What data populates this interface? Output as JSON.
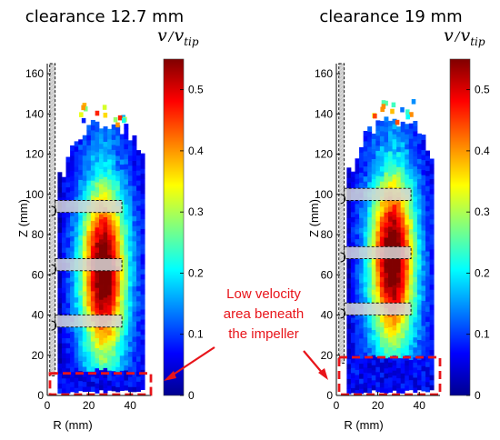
{
  "chart_data": [
    {
      "type": "heatmap",
      "title": "clearance 12.7 mm",
      "xlabel": "R (mm)",
      "ylabel": "Z (mm)",
      "xlim": [
        0,
        50
      ],
      "ylim": [
        0,
        165
      ],
      "xticks": [
        "0",
        "20",
        "40"
      ],
      "yticks": [
        "0",
        "20",
        "40",
        "60",
        "80",
        "100",
        "120",
        "140",
        "160"
      ],
      "clearance_mm": 12.7,
      "field_top_center_mm": 108,
      "field_peak_z_mm": 62,
      "low_velocity_box": {
        "r_range": [
          0,
          50
        ],
        "z_range": [
          0,
          11
        ]
      },
      "impeller_blades_z_mm": [
        [
          91,
          97
        ],
        [
          62,
          68
        ],
        [
          34,
          40
        ]
      ]
    },
    {
      "type": "heatmap",
      "title": "clearance 19 mm",
      "xlabel": "R (mm)",
      "ylabel": "Z (mm)",
      "xlim": [
        0,
        50
      ],
      "ylim": [
        0,
        165
      ],
      "xticks": [
        "0",
        "20",
        "40"
      ],
      "yticks": [
        "0",
        "20",
        "40",
        "60",
        "80",
        "100",
        "120",
        "140",
        "160"
      ],
      "clearance_mm": 19,
      "field_top_center_mm": 110,
      "field_peak_z_mm": 68,
      "low_velocity_box": {
        "r_range": [
          0,
          50
        ],
        "z_range": [
          0,
          19
        ]
      },
      "impeller_blades_z_mm": [
        [
          97,
          103
        ],
        [
          68,
          74
        ],
        [
          40,
          46
        ]
      ]
    }
  ],
  "colorbar": {
    "label_main": "v",
    "label_sub": "tip",
    "min": 0,
    "max": 0.55,
    "ticks": [
      "0",
      "0.1",
      "0.2",
      "0.3",
      "0.4",
      "0.5"
    ],
    "colormap": "jet"
  },
  "annotation": {
    "lines": [
      "Low velocity",
      "area beneath",
      "the impeller"
    ],
    "color": "#e8141a"
  }
}
